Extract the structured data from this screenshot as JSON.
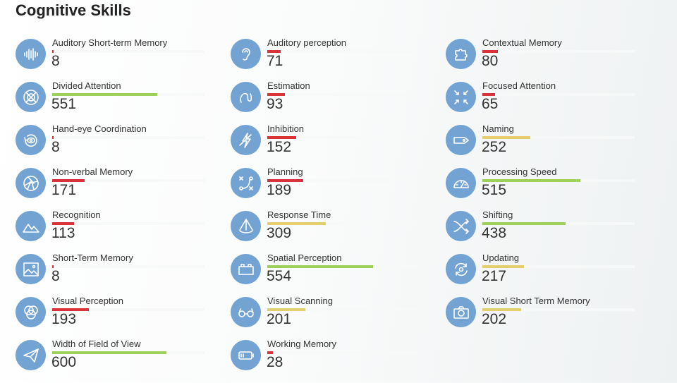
{
  "title": "Cognitive Skills",
  "scale_max": 800,
  "colors": {
    "low": "#d9343a",
    "mid": "#e4cf6c",
    "high": "#9dd15a",
    "icon_bg": "#72a3d3"
  },
  "skills": [
    {
      "label": "Auditory Short-term Memory",
      "value": 8,
      "icon": "sound-wave-icon"
    },
    {
      "label": "Divided Attention",
      "value": 551,
      "icon": "crosshair-icon"
    },
    {
      "label": "Hand-eye Coordination",
      "value": 8,
      "icon": "rotate-eye-icon"
    },
    {
      "label": "Non-verbal Memory",
      "value": 171,
      "icon": "aperture-icon"
    },
    {
      "label": "Recognition",
      "value": 113,
      "icon": "mountains-icon"
    },
    {
      "label": "Short-Term Memory",
      "value": 8,
      "icon": "image-icon"
    },
    {
      "label": "Visual Perception",
      "value": 193,
      "icon": "circles-icon"
    },
    {
      "label": "Width of Field of View",
      "value": 600,
      "icon": "paper-plane-icon"
    },
    {
      "label": "Auditory perception",
      "value": 71,
      "icon": "ear-icon"
    },
    {
      "label": "Estimation",
      "value": 93,
      "icon": "curve-icon"
    },
    {
      "label": "Inhibition",
      "value": 152,
      "icon": "lightning-icon"
    },
    {
      "label": "Planning",
      "value": 189,
      "icon": "plan-icon"
    },
    {
      "label": "Response Time",
      "value": 309,
      "icon": "cone-icon"
    },
    {
      "label": "Spatial Perception",
      "value": 554,
      "icon": "block-icon"
    },
    {
      "label": "Visual Scanning",
      "value": 201,
      "icon": "glasses-icon"
    },
    {
      "label": "Working Memory",
      "value": 28,
      "icon": "battery-icon"
    },
    {
      "label": "Contextual Memory",
      "value": 80,
      "icon": "puzzle-icon"
    },
    {
      "label": "Focused Attention",
      "value": 65,
      "icon": "focus-arrows-icon"
    },
    {
      "label": "Naming",
      "value": 252,
      "icon": "tag-icon"
    },
    {
      "label": "Processing Speed",
      "value": 515,
      "icon": "speedometer-icon"
    },
    {
      "label": "Shifting",
      "value": 438,
      "icon": "shuffle-arrows-icon"
    },
    {
      "label": "Updating",
      "value": 217,
      "icon": "refresh-eye-icon"
    },
    {
      "label": "Visual Short Term Memory",
      "value": 202,
      "icon": "camera-icon"
    }
  ]
}
